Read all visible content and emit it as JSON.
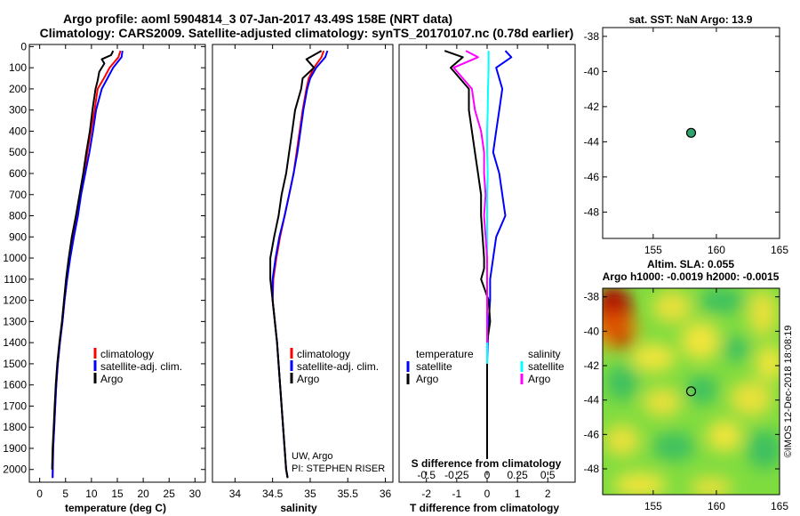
{
  "title_line1": "Argo profile: aoml 5904814_3 07-Jan-2017 43.49S 158E (NRT data)",
  "title_line2": "Climatology: CARS2009. Satellite-adjusted climatology: synTS_20170107.nc (0.78d earlier)",
  "colors": {
    "climatology": "#ff0000",
    "satellite": "#0000ff",
    "argo": "#000000",
    "sat_salinity": "#00ffff",
    "argo_salinity": "#ff00ff",
    "marker": "#2fa36b"
  },
  "depth_ticks": [
    0,
    100,
    200,
    300,
    400,
    500,
    600,
    700,
    800,
    900,
    1000,
    1100,
    1200,
    1300,
    1400,
    1500,
    1600,
    1700,
    1800,
    1900,
    2000
  ],
  "chart_data": [
    {
      "type": "line",
      "id": "temperature",
      "xlabel": "temperature (deg C)",
      "xlim": [
        -2,
        32
      ],
      "ylim": [
        2060,
        -10
      ],
      "xticks": [
        0,
        5,
        10,
        15,
        20,
        25,
        30
      ],
      "legend": [
        "climatology",
        "satellite-adj. clim.",
        "Argo"
      ],
      "series": [
        {
          "name": "climatology",
          "color": "red",
          "x": [
            15.6,
            15.2,
            13.5,
            12.4,
            11.2,
            10.6,
            9.9,
            9.2,
            8.6,
            7.9,
            7.3,
            6.5,
            5.8,
            5.3,
            4.8,
            4.4,
            3.9,
            3.5,
            3.2,
            3.0,
            2.8,
            2.6,
            2.5
          ],
          "y": [
            20,
            50,
            100,
            150,
            200,
            300,
            400,
            500,
            600,
            700,
            800,
            900,
            1000,
            1100,
            1200,
            1300,
            1400,
            1500,
            1600,
            1700,
            1800,
            1900,
            2040
          ]
        },
        {
          "name": "satellite-adj. clim.",
          "color": "blue",
          "x": [
            16.0,
            15.8,
            14.2,
            13.1,
            12.0,
            10.9,
            10.3,
            9.6,
            8.8,
            8.0,
            7.4,
            6.6,
            5.9,
            5.3,
            4.8,
            4.4,
            3.9,
            3.5,
            3.2,
            3.0,
            2.8,
            2.6,
            2.5
          ],
          "y": [
            20,
            50,
            100,
            150,
            200,
            300,
            400,
            500,
            600,
            700,
            800,
            900,
            1000,
            1100,
            1200,
            1300,
            1400,
            1500,
            1600,
            1700,
            1800,
            1900,
            2040
          ]
        },
        {
          "name": "Argo",
          "color": "black",
          "x": [
            14.2,
            13.8,
            12.0,
            12.5,
            11.5,
            11.2,
            10.8,
            10.2,
            9.7,
            9.0,
            8.4,
            7.7,
            7.0,
            6.2,
            5.6,
            5.1,
            4.7,
            4.3,
            3.8,
            3.4,
            3.1,
            2.9,
            2.7,
            2.5,
            2.4
          ],
          "y": [
            20,
            40,
            60,
            80,
            120,
            160,
            200,
            300,
            400,
            500,
            600,
            700,
            800,
            900,
            1000,
            1100,
            1200,
            1300,
            1400,
            1500,
            1600,
            1700,
            1800,
            1900,
            2000
          ]
        }
      ]
    },
    {
      "type": "line",
      "id": "salinity",
      "xlabel": "salinity",
      "xlim": [
        33.7,
        36.1
      ],
      "ylim": [
        2060,
        -10
      ],
      "xticks": [
        34,
        34.5,
        35,
        35.5,
        36
      ],
      "xticklabels": [
        "34",
        "34.5",
        "35",
        "35.5",
        "36"
      ],
      "legend": [
        "climatology",
        "satellite-adj. clim.",
        "Argo"
      ],
      "annotations": [
        "UW, Argo",
        "PI: STEPHEN RISER"
      ],
      "series": [
        {
          "name": "climatology",
          "color": "red",
          "x": [
            35.18,
            35.15,
            35.05,
            34.98,
            34.95,
            34.9,
            34.86,
            34.82,
            34.78,
            34.72,
            34.66,
            34.6,
            34.55,
            34.51,
            34.5,
            34.53,
            34.56,
            34.58,
            34.6,
            34.62,
            34.64,
            34.66,
            34.68,
            34.7
          ],
          "y": [
            20,
            50,
            100,
            150,
            200,
            300,
            400,
            500,
            600,
            700,
            800,
            900,
            1000,
            1100,
            1200,
            1300,
            1400,
            1500,
            1600,
            1700,
            1800,
            1900,
            2000,
            2040
          ]
        },
        {
          "name": "satellite-adj. clim.",
          "color": "blue",
          "x": [
            35.23,
            35.2,
            35.08,
            35.0,
            34.96,
            34.91,
            34.87,
            34.83,
            34.78,
            34.72,
            34.66,
            34.59,
            34.54,
            34.5,
            34.5,
            34.53,
            34.56,
            34.58,
            34.6,
            34.62,
            34.64,
            34.66,
            34.68,
            34.7
          ],
          "y": [
            20,
            50,
            100,
            150,
            200,
            300,
            400,
            500,
            600,
            700,
            800,
            900,
            1000,
            1100,
            1200,
            1300,
            1400,
            1500,
            1600,
            1700,
            1800,
            1900,
            2000,
            2040
          ]
        },
        {
          "name": "Argo",
          "color": "black",
          "x": [
            35.15,
            34.95,
            35.05,
            34.9,
            34.88,
            34.8,
            34.76,
            34.72,
            34.68,
            34.62,
            34.58,
            34.52,
            34.47,
            34.47,
            34.5,
            34.53,
            34.56,
            34.58,
            34.6,
            34.62,
            34.64,
            34.66,
            34.68,
            34.7
          ],
          "y": [
            20,
            60,
            100,
            150,
            200,
            300,
            400,
            500,
            600,
            700,
            800,
            900,
            1000,
            1100,
            1200,
            1300,
            1400,
            1500,
            1600,
            1700,
            1800,
            1900,
            2000,
            2040
          ]
        }
      ]
    },
    {
      "type": "line",
      "id": "difference",
      "xlabel": "T difference from climatology",
      "xlabel2": "S difference from climatology",
      "xlim": [
        -2.9,
        2.9
      ],
      "ylim": [
        2060,
        -10
      ],
      "xticks": [
        -2,
        -1,
        0,
        1,
        2
      ],
      "xticks2": [
        -0.5,
        -0.25,
        0,
        0.25,
        0.5
      ],
      "xticklabels2": [
        "-0.5",
        "-0.25",
        "0",
        "0.25",
        "0.5"
      ],
      "legend_temperature": {
        "heading": "temperature",
        "entries": [
          "satellite",
          "Argo"
        ]
      },
      "legend_salinity": {
        "heading": "salinity",
        "entries": [
          "satellite",
          "Argo"
        ]
      },
      "series": [
        {
          "name": "temperature satellite",
          "color": "blue",
          "x": [
            0.6,
            0.8,
            0.3,
            0.5,
            0.4,
            0.3,
            0.2,
            0.4,
            0.5,
            0.6,
            0.3,
            0.2,
            0.1,
            0.1,
            0.05,
            0.02,
            0.0,
            0.0,
            0.0,
            0.0,
            0.0
          ],
          "y": [
            20,
            50,
            100,
            200,
            300,
            400,
            500,
            600,
            700,
            800,
            900,
            1000,
            1100,
            1200,
            1300,
            1400,
            1500,
            1600,
            1700,
            1800,
            1950
          ]
        },
        {
          "name": "temperature Argo",
          "color": "black",
          "x": [
            -1.4,
            -0.8,
            -1.2,
            -0.6,
            -0.6,
            -0.5,
            -0.4,
            -0.3,
            -0.2,
            -0.2,
            -0.15,
            -0.1,
            -0.1,
            -0.2,
            0.05,
            0.1,
            0.0,
            0.0,
            0.0,
            0.0,
            0.0
          ],
          "y": [
            20,
            50,
            100,
            200,
            300,
            400,
            500,
            600,
            700,
            800,
            900,
            1000,
            1050,
            1100,
            1200,
            1300,
            1400,
            1600,
            1700,
            1800,
            1950
          ]
        },
        {
          "name": "salinity satellite",
          "color": "cyan",
          "x": [
            0.05,
            0.05,
            0.03,
            0.02,
            0.0,
            0.0,
            0.02,
            0.0,
            0.0,
            0.0,
            0.0,
            0.0,
            0.0,
            0.0,
            0.0,
            0.0
          ],
          "y": [
            20,
            100,
            200,
            300,
            400,
            500,
            600,
            700,
            800,
            900,
            1000,
            1100,
            1200,
            1300,
            1400,
            1500
          ]
        },
        {
          "name": "salinity Argo",
          "color": "magenta",
          "x": [
            -0.7,
            -0.3,
            -1.1,
            -0.5,
            -0.4,
            -0.2,
            -0.1,
            -0.1,
            -0.05,
            -0.1,
            -0.05,
            0.0,
            0.0,
            0.0,
            0.0,
            0.0
          ],
          "y": [
            20,
            50,
            100,
            200,
            300,
            400,
            500,
            600,
            700,
            800,
            900,
            1000,
            1100,
            1200,
            1300,
            1400
          ]
        }
      ]
    },
    {
      "type": "scatter",
      "id": "location",
      "title": "sat. SST: NaN Argo: 13.9",
      "xlim": [
        151,
        165
      ],
      "ylim": [
        -49.5,
        -37.5
      ],
      "xticks": [
        155,
        160,
        165
      ],
      "yticks": [
        -38,
        -40,
        -42,
        -44,
        -46,
        -48
      ],
      "points": [
        {
          "lon": 158,
          "lat": -43.49
        }
      ]
    },
    {
      "type": "heatmap",
      "id": "sla",
      "title_line1": "Altim. SLA: 0.055",
      "title_line2": "Argo h1000: -0.0019 h2000: -0.0015",
      "xlim": [
        151,
        165
      ],
      "ylim": [
        -49.5,
        -37.5
      ],
      "xticks": [
        155,
        160,
        165
      ],
      "yticks": [
        -38,
        -40,
        -42,
        -44,
        -46,
        -48
      ],
      "points": [
        {
          "lon": 158,
          "lat": -43.49
        }
      ]
    }
  ],
  "watermark": "©IMOS 12-Dec-2018 18:08:19"
}
